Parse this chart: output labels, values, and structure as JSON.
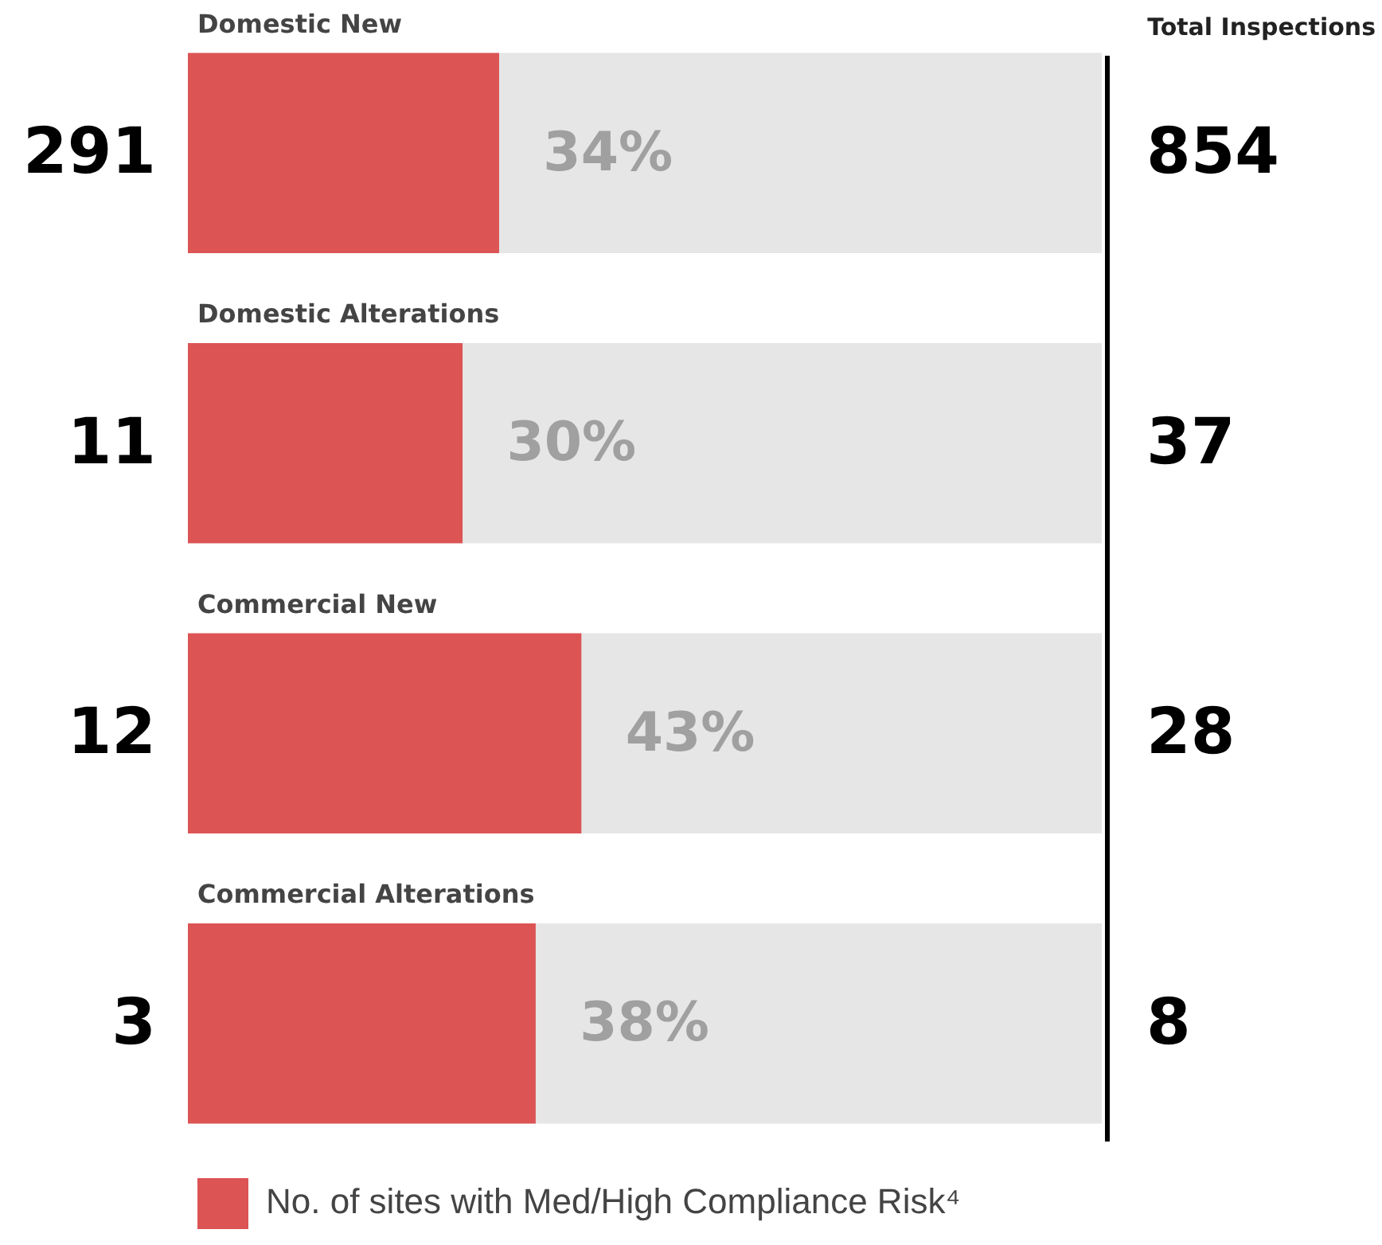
{
  "chart_data": {
    "type": "bar",
    "orientation": "horizontal",
    "stacked": true,
    "categories": [
      "Domestic New",
      "Domestic Alterations",
      "Commercial New",
      "Commercial Alterations"
    ],
    "series": [
      {
        "name": "No. of sites with Med/High Compliance Risk⁴",
        "color": "#dc5454",
        "values": [
          34,
          30,
          43,
          38
        ],
        "value_labels": [
          "34%",
          "30%",
          "43%",
          "38%"
        ]
      },
      {
        "color": "#e6e6e6",
        "values": [
          66,
          70,
          57,
          62
        ]
      }
    ],
    "xlim": [
      0,
      100
    ],
    "tick_labels": false,
    "legend": "bottom left",
    "annotations": [
      "Total Inspections",
      "291",
      "854",
      "11",
      "37",
      "12",
      "28",
      "3",
      "8"
    ]
  }
}
